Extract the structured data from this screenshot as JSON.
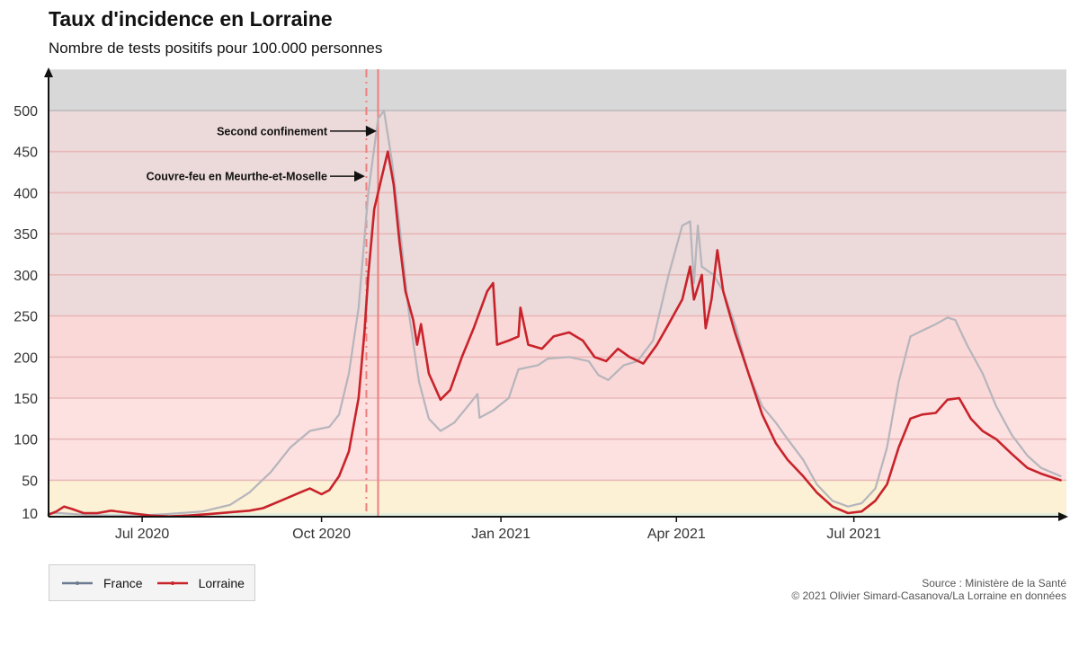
{
  "header": {
    "title": "Taux d'incidence en Lorraine",
    "subtitle": "Nombre de tests positifs pour 100.000 personnes"
  },
  "legend": {
    "items": [
      {
        "label": "France",
        "color": "#6b7a8f"
      },
      {
        "label": "Lorraine",
        "color": "#c8232b"
      }
    ]
  },
  "source": {
    "line1": "Source : Ministère de la Santé",
    "line2": "© 2021 Olivier Simard-Casanova/La Lorraine en données"
  },
  "chart_data": {
    "type": "line",
    "title": "Taux d'incidence en Lorraine",
    "subtitle": "Nombre de tests positifs pour 100.000 personnes",
    "xlabel": "",
    "ylabel": "",
    "x_range": [
      "2020-05-14",
      "2021-10-18"
    ],
    "ylim": [
      5,
      550
    ],
    "y_ticks": [
      10,
      50,
      100,
      150,
      200,
      250,
      300,
      350,
      400,
      450,
      500
    ],
    "x_ticks": [
      {
        "date": "2020-07-01",
        "label": "Jul 2020"
      },
      {
        "date": "2020-10-01",
        "label": "Oct 2020"
      },
      {
        "date": "2021-01-01",
        "label": "Jan 2021"
      },
      {
        "date": "2021-04-01",
        "label": "Apr 2021"
      },
      {
        "date": "2021-07-01",
        "label": "Jul 2021"
      }
    ],
    "bands": [
      {
        "from": 0,
        "to": 10,
        "color": "#e3f0df"
      },
      {
        "from": 10,
        "to": 50,
        "color": "#fcf1d5"
      },
      {
        "from": 50,
        "to": 150,
        "color": "#fde0e0"
      },
      {
        "from": 150,
        "to": 250,
        "color": "#fbd8d8"
      },
      {
        "from": 250,
        "to": 500,
        "color": "#ecd9d9"
      },
      {
        "from": 500,
        "to": 550,
        "color": "#d8d8d8"
      }
    ],
    "band_lines": [
      50,
      100,
      150,
      200,
      250,
      300,
      350,
      400,
      450,
      500
    ],
    "events": [
      {
        "date": "2020-10-24",
        "label": "Couvre-feu en Meurthe-et-Moselle",
        "value": 420,
        "style": "dashed"
      },
      {
        "date": "2020-10-30",
        "label": "Second confinement",
        "value": 475,
        "style": "solid"
      }
    ],
    "series": [
      {
        "name": "France",
        "color": "#b5b5bc",
        "points": [
          [
            "2020-05-14",
            10
          ],
          [
            "2020-05-20",
            10
          ],
          [
            "2020-06-01",
            8
          ],
          [
            "2020-06-15",
            7
          ],
          [
            "2020-07-01",
            7
          ],
          [
            "2020-07-15",
            9
          ],
          [
            "2020-08-01",
            12
          ],
          [
            "2020-08-15",
            20
          ],
          [
            "2020-08-25",
            35
          ],
          [
            "2020-09-05",
            60
          ],
          [
            "2020-09-15",
            90
          ],
          [
            "2020-09-25",
            110
          ],
          [
            "2020-10-05",
            115
          ],
          [
            "2020-10-10",
            130
          ],
          [
            "2020-10-15",
            180
          ],
          [
            "2020-10-20",
            260
          ],
          [
            "2020-10-25",
            400
          ],
          [
            "2020-10-30",
            490
          ],
          [
            "2020-11-02",
            500
          ],
          [
            "2020-11-06",
            440
          ],
          [
            "2020-11-10",
            360
          ],
          [
            "2020-11-15",
            250
          ],
          [
            "2020-11-20",
            170
          ],
          [
            "2020-11-25",
            125
          ],
          [
            "2020-12-01",
            110
          ],
          [
            "2020-12-08",
            120
          ],
          [
            "2020-12-15",
            140
          ],
          [
            "2020-12-20",
            155
          ],
          [
            "2020-12-21",
            126
          ],
          [
            "2020-12-28",
            135
          ],
          [
            "2021-01-05",
            150
          ],
          [
            "2021-01-10",
            185
          ],
          [
            "2021-01-20",
            190
          ],
          [
            "2021-01-25",
            198
          ],
          [
            "2021-02-05",
            200
          ],
          [
            "2021-02-15",
            195
          ],
          [
            "2021-02-20",
            178
          ],
          [
            "2021-02-25",
            172
          ],
          [
            "2021-03-05",
            190
          ],
          [
            "2021-03-12",
            195
          ],
          [
            "2021-03-20",
            220
          ],
          [
            "2021-03-28",
            300
          ],
          [
            "2021-04-04",
            360
          ],
          [
            "2021-04-08",
            365
          ],
          [
            "2021-04-10",
            290
          ],
          [
            "2021-04-12",
            360
          ],
          [
            "2021-04-14",
            310
          ],
          [
            "2021-04-20",
            300
          ],
          [
            "2021-04-25",
            280
          ],
          [
            "2021-05-01",
            240
          ],
          [
            "2021-05-08",
            180
          ],
          [
            "2021-05-15",
            140
          ],
          [
            "2021-05-22",
            120
          ],
          [
            "2021-05-28",
            100
          ],
          [
            "2021-06-05",
            75
          ],
          [
            "2021-06-12",
            45
          ],
          [
            "2021-06-20",
            25
          ],
          [
            "2021-06-28",
            18
          ],
          [
            "2021-07-05",
            22
          ],
          [
            "2021-07-12",
            40
          ],
          [
            "2021-07-18",
            90
          ],
          [
            "2021-07-24",
            170
          ],
          [
            "2021-07-30",
            225
          ],
          [
            "2021-08-05",
            232
          ],
          [
            "2021-08-12",
            240
          ],
          [
            "2021-08-18",
            248
          ],
          [
            "2021-08-22",
            245
          ],
          [
            "2021-08-28",
            215
          ],
          [
            "2021-09-05",
            180
          ],
          [
            "2021-09-12",
            140
          ],
          [
            "2021-09-20",
            105
          ],
          [
            "2021-09-28",
            80
          ],
          [
            "2021-10-05",
            65
          ],
          [
            "2021-10-15",
            55
          ]
        ]
      },
      {
        "name": "Lorraine",
        "color": "#c8232b",
        "points": [
          [
            "2020-05-14",
            8
          ],
          [
            "2020-05-18",
            12
          ],
          [
            "2020-05-22",
            18
          ],
          [
            "2020-05-26",
            15
          ],
          [
            "2020-06-01",
            10
          ],
          [
            "2020-06-08",
            10
          ],
          [
            "2020-06-15",
            13
          ],
          [
            "2020-06-25",
            10
          ],
          [
            "2020-07-05",
            7
          ],
          [
            "2020-07-15",
            6
          ],
          [
            "2020-07-25",
            7
          ],
          [
            "2020-08-05",
            9
          ],
          [
            "2020-08-15",
            11
          ],
          [
            "2020-08-25",
            13
          ],
          [
            "2020-09-01",
            16
          ],
          [
            "2020-09-10",
            25
          ],
          [
            "2020-09-20",
            35
          ],
          [
            "2020-09-25",
            40
          ],
          [
            "2020-10-01",
            33
          ],
          [
            "2020-10-05",
            38
          ],
          [
            "2020-10-10",
            55
          ],
          [
            "2020-10-15",
            85
          ],
          [
            "2020-10-20",
            150
          ],
          [
            "2020-10-23",
            230
          ],
          [
            "2020-10-25",
            300
          ],
          [
            "2020-10-28",
            380
          ],
          [
            "2020-11-01",
            420
          ],
          [
            "2020-11-04",
            450
          ],
          [
            "2020-11-07",
            410
          ],
          [
            "2020-11-10",
            340
          ],
          [
            "2020-11-13",
            280
          ],
          [
            "2020-11-17",
            245
          ],
          [
            "2020-11-19",
            215
          ],
          [
            "2020-11-21",
            240
          ],
          [
            "2020-11-25",
            180
          ],
          [
            "2020-12-01",
            148
          ],
          [
            "2020-12-06",
            160
          ],
          [
            "2020-12-12",
            200
          ],
          [
            "2020-12-18",
            235
          ],
          [
            "2020-12-25",
            280
          ],
          [
            "2020-12-28",
            290
          ],
          [
            "2020-12-30",
            215
          ],
          [
            "2021-01-05",
            220
          ],
          [
            "2021-01-10",
            225
          ],
          [
            "2021-01-11",
            260
          ],
          [
            "2021-01-15",
            215
          ],
          [
            "2021-01-22",
            210
          ],
          [
            "2021-01-28",
            225
          ],
          [
            "2021-02-05",
            230
          ],
          [
            "2021-02-12",
            220
          ],
          [
            "2021-02-18",
            200
          ],
          [
            "2021-02-24",
            195
          ],
          [
            "2021-03-02",
            210
          ],
          [
            "2021-03-08",
            200
          ],
          [
            "2021-03-15",
            192
          ],
          [
            "2021-03-22",
            215
          ],
          [
            "2021-03-28",
            240
          ],
          [
            "2021-04-04",
            270
          ],
          [
            "2021-04-08",
            310
          ],
          [
            "2021-04-10",
            270
          ],
          [
            "2021-04-14",
            300
          ],
          [
            "2021-04-16",
            235
          ],
          [
            "2021-04-19",
            270
          ],
          [
            "2021-04-22",
            330
          ],
          [
            "2021-04-25",
            280
          ],
          [
            "2021-05-01",
            230
          ],
          [
            "2021-05-08",
            180
          ],
          [
            "2021-05-15",
            130
          ],
          [
            "2021-05-22",
            95
          ],
          [
            "2021-05-28",
            75
          ],
          [
            "2021-06-05",
            55
          ],
          [
            "2021-06-12",
            35
          ],
          [
            "2021-06-20",
            18
          ],
          [
            "2021-06-28",
            10
          ],
          [
            "2021-07-05",
            12
          ],
          [
            "2021-07-12",
            25
          ],
          [
            "2021-07-18",
            45
          ],
          [
            "2021-07-24",
            90
          ],
          [
            "2021-07-30",
            125
          ],
          [
            "2021-08-05",
            130
          ],
          [
            "2021-08-12",
            132
          ],
          [
            "2021-08-18",
            148
          ],
          [
            "2021-08-24",
            150
          ],
          [
            "2021-08-30",
            125
          ],
          [
            "2021-09-05",
            110
          ],
          [
            "2021-09-12",
            100
          ],
          [
            "2021-09-20",
            82
          ],
          [
            "2021-09-28",
            65
          ],
          [
            "2021-10-05",
            58
          ],
          [
            "2021-10-15",
            50
          ]
        ]
      }
    ]
  }
}
